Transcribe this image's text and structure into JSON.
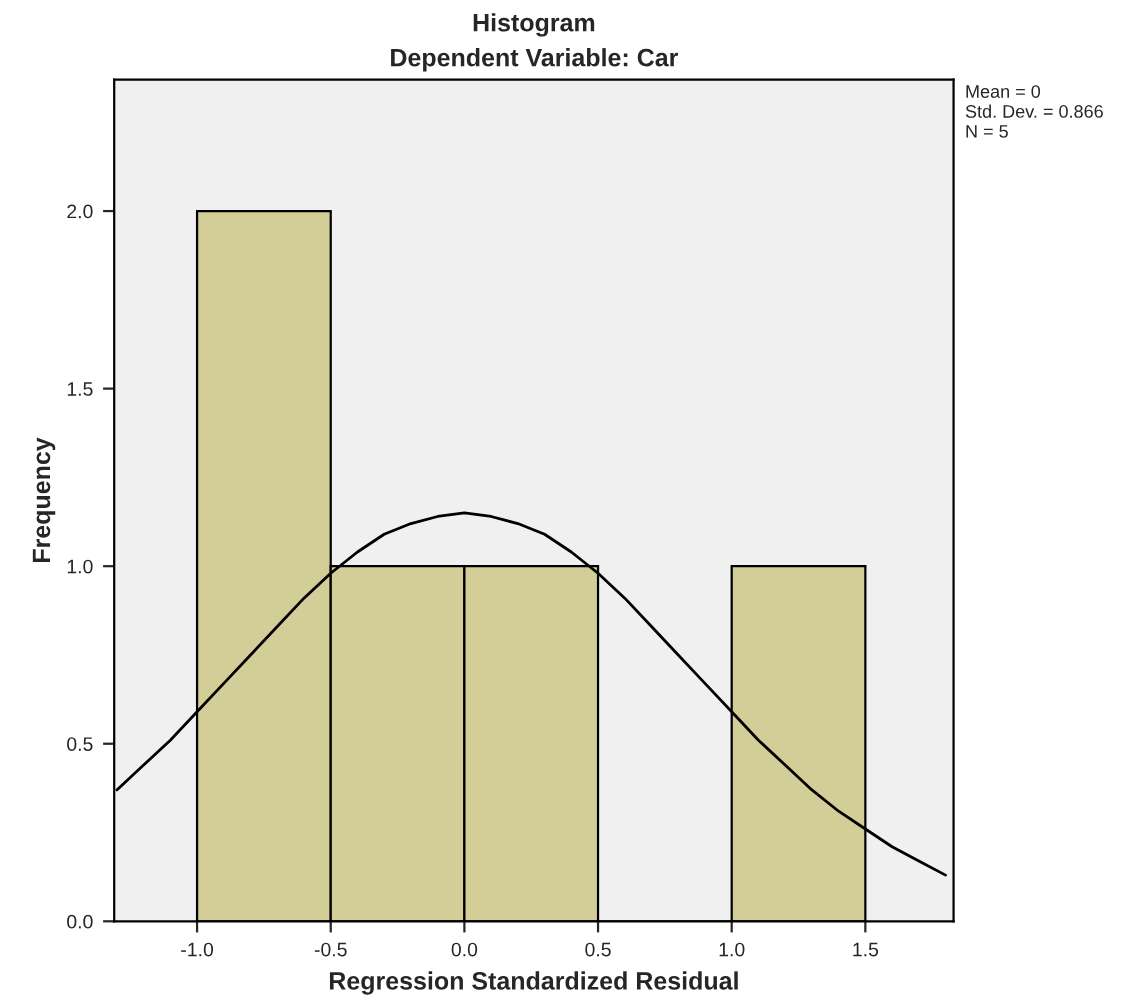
{
  "chart_data": {
    "type": "histogram",
    "title": "Histogram",
    "subtitle": "Dependent Variable: Car",
    "xlabel": "Regression Standardized Residual",
    "ylabel": "Frequency",
    "series": [
      {
        "bins": [
          -1.0,
          -0.5,
          0.0,
          0.5,
          1.0,
          1.5
        ],
        "values": [
          2,
          1,
          1,
          0,
          1
        ],
        "color": "#d3ce97"
      },
      {
        "type": "line",
        "x": [
          -1.3,
          -1.2,
          -1.1,
          -1.0,
          -0.9,
          -0.8,
          -0.7,
          -0.6,
          -0.5,
          -0.4,
          -0.3,
          -0.2,
          -0.1,
          0.0,
          0.1,
          0.2,
          0.3,
          0.4,
          0.5,
          0.6,
          0.7,
          0.8,
          0.9,
          1.0,
          1.1,
          1.2,
          1.3,
          1.4,
          1.5,
          1.6,
          1.7,
          1.8
        ],
        "values": [
          0.37,
          0.44,
          0.51,
          0.59,
          0.67,
          0.75,
          0.83,
          0.91,
          0.98,
          1.04,
          1.09,
          1.12,
          1.14,
          1.15,
          1.14,
          1.12,
          1.09,
          1.04,
          0.98,
          0.91,
          0.83,
          0.75,
          0.67,
          0.59,
          0.51,
          0.44,
          0.37,
          0.31,
          0.26,
          0.21,
          0.17,
          0.13
        ],
        "color": "#000000"
      }
    ],
    "xlim": [
      -1.31,
      1.83
    ],
    "ylim": [
      0,
      2.37
    ],
    "xticks": [
      {
        "value": -1.0,
        "label": "-1.0"
      },
      {
        "value": -0.5,
        "label": "-0.5"
      },
      {
        "value": 0.0,
        "label": "0.0"
      },
      {
        "value": 0.5,
        "label": "0.5"
      },
      {
        "value": 1.0,
        "label": "1.0"
      },
      {
        "value": 1.5,
        "label": "1.5"
      }
    ],
    "yticks": [
      {
        "value": 0,
        "label": "0.0"
      },
      {
        "value": 0.5,
        "label": "0.5"
      },
      {
        "value": 1.0,
        "label": "1.0"
      },
      {
        "value": 1.5,
        "label": "1.5"
      },
      {
        "value": 2.0,
        "label": "2.0"
      }
    ],
    "annotations": [
      "Mean = 0",
      "Std. Dev. = 0.866",
      "N = 5"
    ],
    "grid": false,
    "legend": false
  }
}
